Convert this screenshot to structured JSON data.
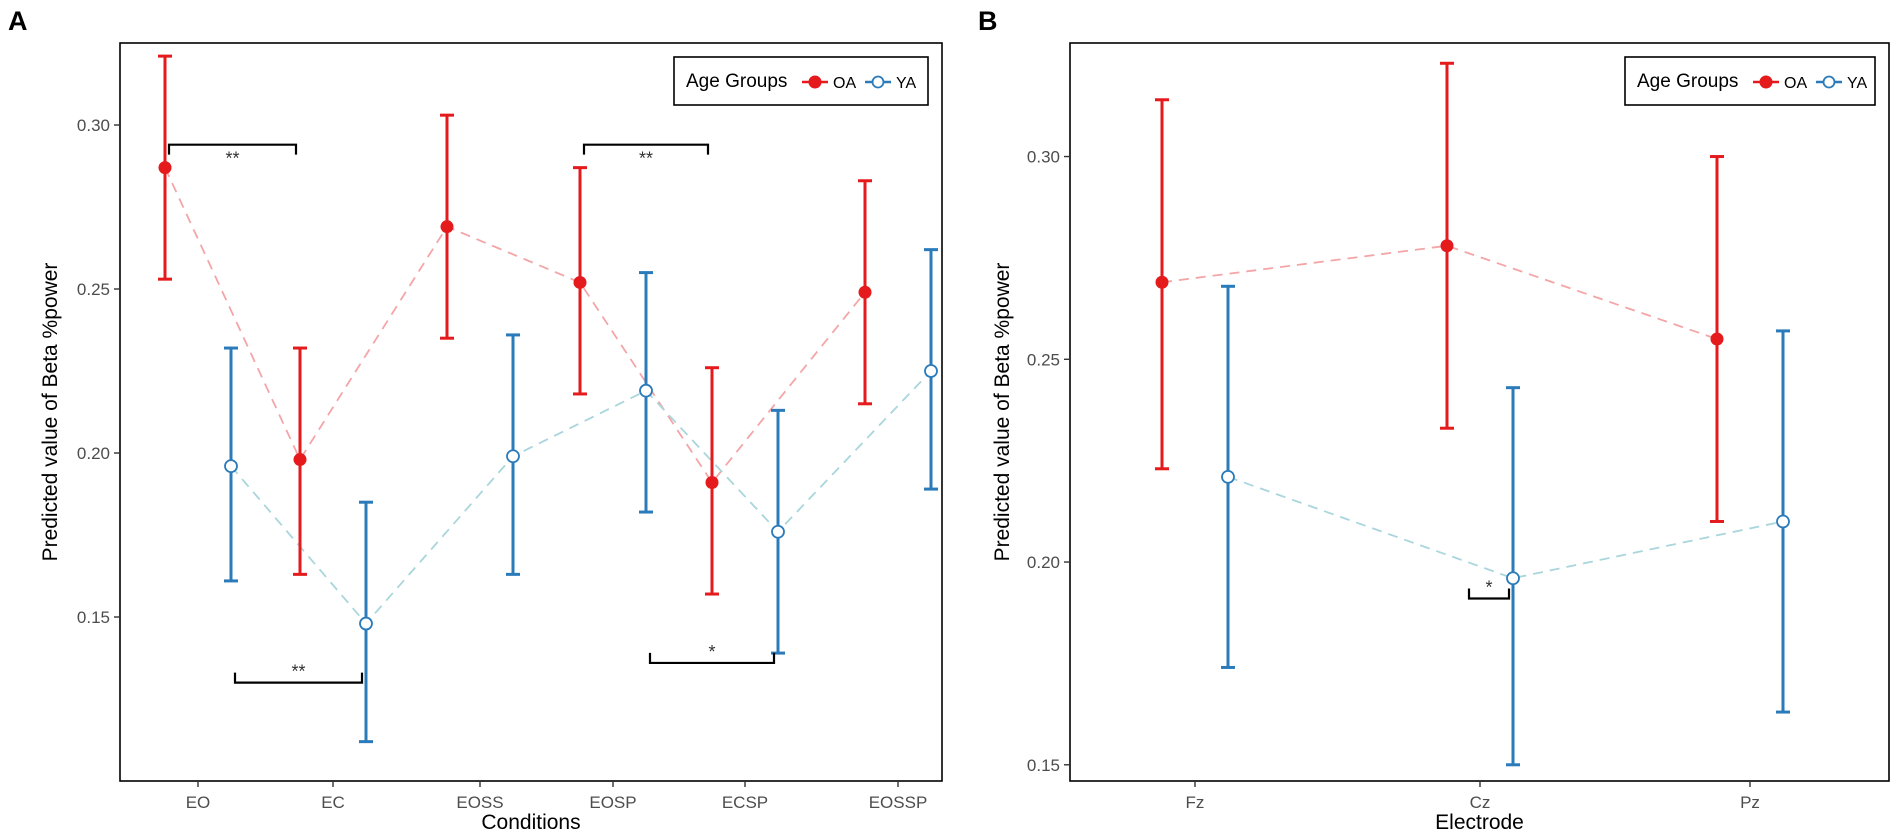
{
  "chart_data": [
    {
      "panel": "A",
      "type": "point-errorbar",
      "xlabel": "Conditions",
      "ylabel": "Predicted value of Beta %power",
      "categories": [
        "EO",
        "EC",
        "EOSS",
        "EOSP",
        "ECSP",
        "EOSSP"
      ],
      "ylim": [
        0.1,
        0.325
      ],
      "yticks": [
        0.15,
        0.2,
        0.25,
        0.3
      ],
      "ytick_labels": [
        "0.15",
        "0.20",
        "0.25",
        "0.30"
      ],
      "legend": {
        "title": "Age Groups",
        "position": "top-right"
      },
      "series": [
        {
          "name": "OA",
          "color": "#e41a1c",
          "marker": "filled-circle",
          "values": [
            0.287,
            0.198,
            0.269,
            0.252,
            0.191,
            0.249
          ],
          "lower": [
            0.253,
            0.163,
            0.235,
            0.218,
            0.157,
            0.215
          ],
          "upper": [
            0.321,
            0.232,
            0.303,
            0.287,
            0.226,
            0.283
          ]
        },
        {
          "name": "YA",
          "color": "#2b7bba",
          "marker": "open-circle",
          "values": [
            0.196,
            0.148,
            0.199,
            0.219,
            0.176,
            0.225
          ],
          "lower": [
            0.161,
            0.112,
            0.163,
            0.182,
            0.139,
            0.189
          ],
          "upper": [
            0.232,
            0.185,
            0.236,
            0.255,
            0.213,
            0.262
          ]
        }
      ],
      "annotations": [
        {
          "series": "OA",
          "from": 0,
          "to": 1,
          "label": "**",
          "y": 0.294,
          "side": "above"
        },
        {
          "series": "OA",
          "from": 3,
          "to": 4,
          "label": "**",
          "y": 0.294,
          "side": "above"
        },
        {
          "series": "YA",
          "from": 0,
          "to": 1,
          "label": "**",
          "y": 0.13,
          "side": "below"
        },
        {
          "series": "YA",
          "from": 3,
          "to": 4,
          "label": "*",
          "y": 0.136,
          "side": "below"
        }
      ]
    },
    {
      "panel": "B",
      "type": "point-errorbar",
      "xlabel": "Electrode",
      "ylabel": "Predicted value of Beta %power",
      "categories": [
        "Fz",
        "Cz",
        "Pz"
      ],
      "ylim": [
        0.146,
        0.328
      ],
      "yticks": [
        0.15,
        0.2,
        0.25,
        0.3
      ],
      "ytick_labels": [
        "0.15",
        "0.20",
        "0.25",
        "0.30"
      ],
      "legend": {
        "title": "Age Groups",
        "position": "top-right"
      },
      "series": [
        {
          "name": "OA",
          "color": "#e41a1c",
          "marker": "filled-circle",
          "values": [
            0.269,
            0.278,
            0.255
          ],
          "lower": [
            0.223,
            0.233,
            0.21
          ],
          "upper": [
            0.314,
            0.323,
            0.3
          ]
        },
        {
          "name": "YA",
          "color": "#2b7bba",
          "marker": "open-circle",
          "values": [
            0.221,
            0.196,
            0.21
          ],
          "lower": [
            0.174,
            0.15,
            0.163
          ],
          "upper": [
            0.268,
            0.243,
            0.257
          ]
        }
      ],
      "annotations": [
        {
          "series": "YA",
          "from": 1,
          "to": 1,
          "label": "*",
          "y": 0.191,
          "side": "below"
        }
      ]
    }
  ]
}
